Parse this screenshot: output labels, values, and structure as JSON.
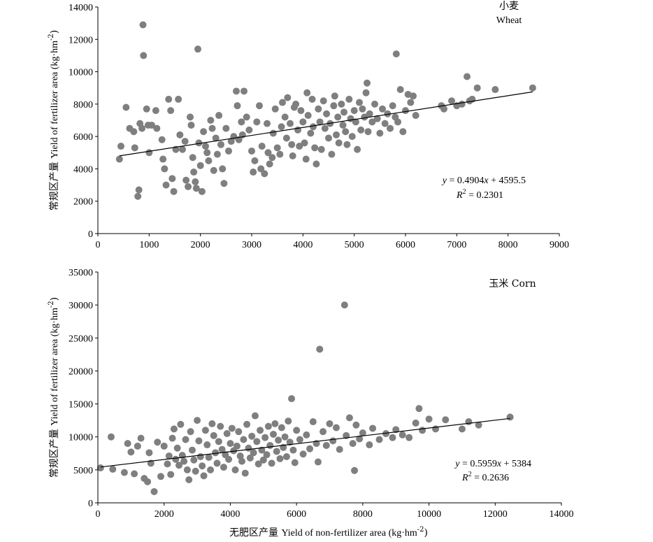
{
  "chart_data": [
    {
      "type": "scatter",
      "title_cn": "小麦",
      "title_en": "Wheat",
      "ylabel_cn": "常规区产量",
      "ylabel_en": "Yield of fertilizer area (kg·hm",
      "ylabel_sup": "-2",
      "ylabel_close": ")",
      "xlim": [
        0,
        9000
      ],
      "ylim": [
        0,
        14000
      ],
      "xticks": [
        "0",
        "1000",
        "2000",
        "3000",
        "4000",
        "5000",
        "6000",
        "7000",
        "8000",
        "9000"
      ],
      "yticks": [
        "0",
        "2000",
        "4000",
        "6000",
        "8000",
        "10000",
        "12000",
        "14000"
      ],
      "equation": "y = 0.4904x + 4595.5",
      "r2": "R2 = 0.2301",
      "fit": {
        "slope": 0.4904,
        "intercept": 4595.5,
        "x_range": [
          420,
          8480
        ]
      },
      "points": [
        [
          420,
          4600
        ],
        [
          450,
          5400
        ],
        [
          550,
          7800
        ],
        [
          620,
          6500
        ],
        [
          700,
          6300
        ],
        [
          720,
          5300
        ],
        [
          780,
          2300
        ],
        [
          800,
          2700
        ],
        [
          820,
          6800
        ],
        [
          860,
          6500
        ],
        [
          880,
          12900
        ],
        [
          890,
          11000
        ],
        [
          950,
          7700
        ],
        [
          980,
          6700
        ],
        [
          1000,
          5000
        ],
        [
          1050,
          6700
        ],
        [
          1130,
          7600
        ],
        [
          1150,
          6500
        ],
        [
          1250,
          5800
        ],
        [
          1270,
          4600
        ],
        [
          1300,
          4000
        ],
        [
          1330,
          3000
        ],
        [
          1380,
          8300
        ],
        [
          1420,
          7600
        ],
        [
          1450,
          3400
        ],
        [
          1480,
          2600
        ],
        [
          1520,
          5200
        ],
        [
          1570,
          8300
        ],
        [
          1600,
          6100
        ],
        [
          1650,
          5200
        ],
        [
          1700,
          5700
        ],
        [
          1720,
          3300
        ],
        [
          1760,
          2900
        ],
        [
          1800,
          7200
        ],
        [
          1820,
          6700
        ],
        [
          1850,
          4700
        ],
        [
          1870,
          3800
        ],
        [
          1900,
          3200
        ],
        [
          1920,
          2800
        ],
        [
          1950,
          11400
        ],
        [
          1970,
          5600
        ],
        [
          2000,
          4200
        ],
        [
          2030,
          2600
        ],
        [
          2060,
          6300
        ],
        [
          2100,
          5400
        ],
        [
          2130,
          5000
        ],
        [
          2160,
          4500
        ],
        [
          2200,
          7000
        ],
        [
          2230,
          6500
        ],
        [
          2260,
          3900
        ],
        [
          2300,
          5900
        ],
        [
          2330,
          4900
        ],
        [
          2360,
          7300
        ],
        [
          2400,
          5500
        ],
        [
          2430,
          4000
        ],
        [
          2460,
          3100
        ],
        [
          2500,
          6500
        ],
        [
          2550,
          5100
        ],
        [
          2600,
          5700
        ],
        [
          2650,
          6000
        ],
        [
          2700,
          8800
        ],
        [
          2720,
          7900
        ],
        [
          2750,
          5800
        ],
        [
          2800,
          6900
        ],
        [
          2820,
          6100
        ],
        [
          2850,
          8800
        ],
        [
          2900,
          7200
        ],
        [
          2950,
          6400
        ],
        [
          3000,
          5100
        ],
        [
          3030,
          3800
        ],
        [
          3060,
          4500
        ],
        [
          3100,
          6900
        ],
        [
          3150,
          7900
        ],
        [
          3180,
          4000
        ],
        [
          3200,
          5400
        ],
        [
          3250,
          3700
        ],
        [
          3300,
          6800
        ],
        [
          3320,
          5000
        ],
        [
          3350,
          4300
        ],
        [
          3400,
          4700
        ],
        [
          3420,
          6200
        ],
        [
          3460,
          7700
        ],
        [
          3500,
          5300
        ],
        [
          3550,
          4900
        ],
        [
          3580,
          6600
        ],
        [
          3600,
          8100
        ],
        [
          3650,
          7200
        ],
        [
          3680,
          5900
        ],
        [
          3700,
          8400
        ],
        [
          3750,
          6800
        ],
        [
          3780,
          5500
        ],
        [
          3800,
          4800
        ],
        [
          3830,
          7800
        ],
        [
          3860,
          8000
        ],
        [
          3900,
          6400
        ],
        [
          3930,
          5400
        ],
        [
          3960,
          7600
        ],
        [
          4000,
          6900
        ],
        [
          4030,
          5600
        ],
        [
          4060,
          4600
        ],
        [
          4080,
          8700
        ],
        [
          4100,
          7300
        ],
        [
          4150,
          6200
        ],
        [
          4180,
          8300
        ],
        [
          4200,
          6600
        ],
        [
          4230,
          5300
        ],
        [
          4260,
          4300
        ],
        [
          4300,
          7700
        ],
        [
          4330,
          6900
        ],
        [
          4360,
          5200
        ],
        [
          4400,
          8200
        ],
        [
          4430,
          6500
        ],
        [
          4460,
          7400
        ],
        [
          4500,
          5900
        ],
        [
          4530,
          6800
        ],
        [
          4560,
          4900
        ],
        [
          4600,
          7900
        ],
        [
          4620,
          8500
        ],
        [
          4650,
          6100
        ],
        [
          4680,
          7200
        ],
        [
          4700,
          5600
        ],
        [
          4750,
          8000
        ],
        [
          4780,
          6700
        ],
        [
          4800,
          7500
        ],
        [
          4830,
          6300
        ],
        [
          4860,
          5500
        ],
        [
          4900,
          8300
        ],
        [
          4930,
          7100
        ],
        [
          4960,
          6000
        ],
        [
          5000,
          7600
        ],
        [
          5030,
          6900
        ],
        [
          5060,
          5200
        ],
        [
          5100,
          8100
        ],
        [
          5130,
          6400
        ],
        [
          5160,
          7700
        ],
        [
          5200,
          7200
        ],
        [
          5230,
          8700
        ],
        [
          5250,
          9300
        ],
        [
          5270,
          6300
        ],
        [
          5300,
          7400
        ],
        [
          5350,
          6900
        ],
        [
          5400,
          8000
        ],
        [
          5450,
          7100
        ],
        [
          5500,
          6200
        ],
        [
          5550,
          7700
        ],
        [
          5600,
          6800
        ],
        [
          5650,
          7400
        ],
        [
          5700,
          6500
        ],
        [
          5750,
          7900
        ],
        [
          5800,
          7200
        ],
        [
          5820,
          11100
        ],
        [
          5850,
          6900
        ],
        [
          5900,
          8900
        ],
        [
          5950,
          6300
        ],
        [
          6000,
          7600
        ],
        [
          6050,
          8600
        ],
        [
          6100,
          8100
        ],
        [
          6150,
          8500
        ],
        [
          6200,
          7300
        ],
        [
          6700,
          7900
        ],
        [
          6750,
          7700
        ],
        [
          6900,
          8200
        ],
        [
          7000,
          7900
        ],
        [
          7100,
          8000
        ],
        [
          7200,
          9700
        ],
        [
          7250,
          8200
        ],
        [
          7300,
          8300
        ],
        [
          7400,
          9000
        ],
        [
          7750,
          8900
        ],
        [
          8480,
          9000
        ]
      ]
    },
    {
      "type": "scatter",
      "title": "玉米 Corn",
      "ylabel_cn": "常规区产量",
      "ylabel_en": "Yield of fertilizer area (kg·hm",
      "ylabel_sup": "-2",
      "ylabel_close": ")",
      "xlabel_cn": "无肥区产量",
      "xlabel_en": "Yield of non-fertilizer area (kg·hm",
      "xlabel_sup": "-2",
      "xlabel_close": ")",
      "xlim": [
        0,
        14000
      ],
      "ylim": [
        0,
        35000
      ],
      "xticks": [
        "0",
        "2000",
        "4000",
        "6000",
        "8000",
        "10000",
        "12000",
        "14000"
      ],
      "yticks": [
        "0",
        "5000",
        "10000",
        "15000",
        "20000",
        "25000",
        "30000",
        "35000"
      ],
      "equation": "y = 0.5959x + 5384",
      "r2": "R2 = 0.2636",
      "fit": {
        "slope": 0.5959,
        "intercept": 5384,
        "x_range": [
          80,
          12450
        ]
      },
      "points": [
        [
          80,
          5300
        ],
        [
          400,
          10000
        ],
        [
          450,
          5100
        ],
        [
          800,
          4600
        ],
        [
          900,
          9000
        ],
        [
          1000,
          7700
        ],
        [
          1100,
          4400
        ],
        [
          1200,
          8600
        ],
        [
          1300,
          9800
        ],
        [
          1400,
          3700
        ],
        [
          1500,
          3200
        ],
        [
          1550,
          7600
        ],
        [
          1600,
          6000
        ],
        [
          1700,
          1700
        ],
        [
          1800,
          9200
        ],
        [
          1900,
          4000
        ],
        [
          2000,
          8600
        ],
        [
          2100,
          5900
        ],
        [
          2150,
          7100
        ],
        [
          2200,
          4300
        ],
        [
          2250,
          9800
        ],
        [
          2300,
          11200
        ],
        [
          2350,
          6600
        ],
        [
          2400,
          8300
        ],
        [
          2450,
          5700
        ],
        [
          2500,
          11900
        ],
        [
          2550,
          7200
        ],
        [
          2600,
          6300
        ],
        [
          2650,
          9600
        ],
        [
          2700,
          5000
        ],
        [
          2750,
          3500
        ],
        [
          2800,
          10800
        ],
        [
          2850,
          8000
        ],
        [
          2900,
          6500
        ],
        [
          2950,
          4800
        ],
        [
          3000,
          12500
        ],
        [
          3050,
          9400
        ],
        [
          3100,
          7000
        ],
        [
          3150,
          5600
        ],
        [
          3200,
          4100
        ],
        [
          3250,
          11000
        ],
        [
          3300,
          8800
        ],
        [
          3350,
          6900
        ],
        [
          3400,
          5000
        ],
        [
          3450,
          12000
        ],
        [
          3500,
          10200
        ],
        [
          3550,
          7600
        ],
        [
          3600,
          6000
        ],
        [
          3650,
          9300
        ],
        [
          3700,
          11600
        ],
        [
          3750,
          8100
        ],
        [
          3800,
          5400
        ],
        [
          3850,
          7300
        ],
        [
          3900,
          10500
        ],
        [
          3950,
          6600
        ],
        [
          4000,
          9000
        ],
        [
          4050,
          11300
        ],
        [
          4100,
          7900
        ],
        [
          4150,
          5000
        ],
        [
          4200,
          8600
        ],
        [
          4250,
          10800
        ],
        [
          4300,
          7100
        ],
        [
          4350,
          6300
        ],
        [
          4400,
          9600
        ],
        [
          4450,
          4500
        ],
        [
          4500,
          11900
        ],
        [
          4550,
          8300
        ],
        [
          4600,
          6800
        ],
        [
          4650,
          10100
        ],
        [
          4700,
          7600
        ],
        [
          4750,
          13200
        ],
        [
          4800,
          9300
        ],
        [
          4850,
          5900
        ],
        [
          4900,
          11000
        ],
        [
          4950,
          8000
        ],
        [
          5000,
          6500
        ],
        [
          5050,
          9900
        ],
        [
          5100,
          7300
        ],
        [
          5150,
          11600
        ],
        [
          5200,
          8700
        ],
        [
          5250,
          6000
        ],
        [
          5300,
          10400
        ],
        [
          5350,
          12000
        ],
        [
          5400,
          7800
        ],
        [
          5450,
          9500
        ],
        [
          5500,
          6700
        ],
        [
          5550,
          11400
        ],
        [
          5600,
          8400
        ],
        [
          5650,
          10000
        ],
        [
          5700,
          7000
        ],
        [
          5750,
          12400
        ],
        [
          5800,
          9200
        ],
        [
          5850,
          15800
        ],
        [
          5900,
          8000
        ],
        [
          5950,
          6100
        ],
        [
          6000,
          11000
        ],
        [
          6100,
          9600
        ],
        [
          6200,
          7400
        ],
        [
          6300,
          10300
        ],
        [
          6400,
          8200
        ],
        [
          6500,
          12300
        ],
        [
          6600,
          9000
        ],
        [
          6650,
          6200
        ],
        [
          6700,
          23300
        ],
        [
          6800,
          10800
        ],
        [
          6900,
          8700
        ],
        [
          7000,
          12000
        ],
        [
          7100,
          9400
        ],
        [
          7200,
          11400
        ],
        [
          7300,
          8100
        ],
        [
          7450,
          30000
        ],
        [
          7500,
          10200
        ],
        [
          7600,
          12900
        ],
        [
          7700,
          9000
        ],
        [
          7750,
          4900
        ],
        [
          7800,
          11800
        ],
        [
          7900,
          9700
        ],
        [
          8000,
          10600
        ],
        [
          8200,
          8800
        ],
        [
          8300,
          11300
        ],
        [
          8500,
          9600
        ],
        [
          8700,
          10500
        ],
        [
          8900,
          9900
        ],
        [
          9000,
          11100
        ],
        [
          9200,
          10300
        ],
        [
          9400,
          9900
        ],
        [
          9600,
          12100
        ],
        [
          9700,
          14300
        ],
        [
          9800,
          11000
        ],
        [
          10000,
          12700
        ],
        [
          10200,
          11200
        ],
        [
          10500,
          12600
        ],
        [
          11000,
          11200
        ],
        [
          11200,
          12300
        ],
        [
          11500,
          11800
        ],
        [
          12450,
          13000
        ]
      ]
    }
  ]
}
